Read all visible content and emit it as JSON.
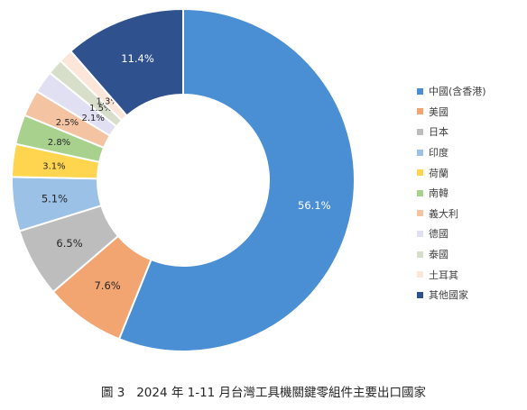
{
  "chart_data": {
    "type": "pie",
    "donut": true,
    "categories": [
      "中國(含香港)",
      "美國",
      "日本",
      "印度",
      "荷蘭",
      "南韓",
      "義大利",
      "德國",
      "泰國",
      "土耳其",
      "其他國家"
    ],
    "values": [
      56.1,
      7.6,
      6.5,
      5.1,
      3.1,
      2.8,
      2.5,
      2.1,
      1.5,
      1.3,
      11.4
    ],
    "labels": [
      "56.1%",
      "7.6%",
      "6.5%",
      "5.1%",
      "3.1%",
      "2.8%",
      "2.5%",
      "2.1%",
      "1.5%",
      "1.3%",
      "11.4%"
    ],
    "colors": [
      "#4A8FD3",
      "#F2A571",
      "#BDBDBD",
      "#9CC1E7",
      "#FFD54F",
      "#A9D18E",
      "#F4C4A2",
      "#E1DFF2",
      "#D7DECA",
      "#FCE6D9",
      "#2F528F"
    ],
    "legend_position": "right"
  },
  "caption": "圖 3   2024 年 1-11 月台灣工具機關鍵零組件主要出口國家"
}
